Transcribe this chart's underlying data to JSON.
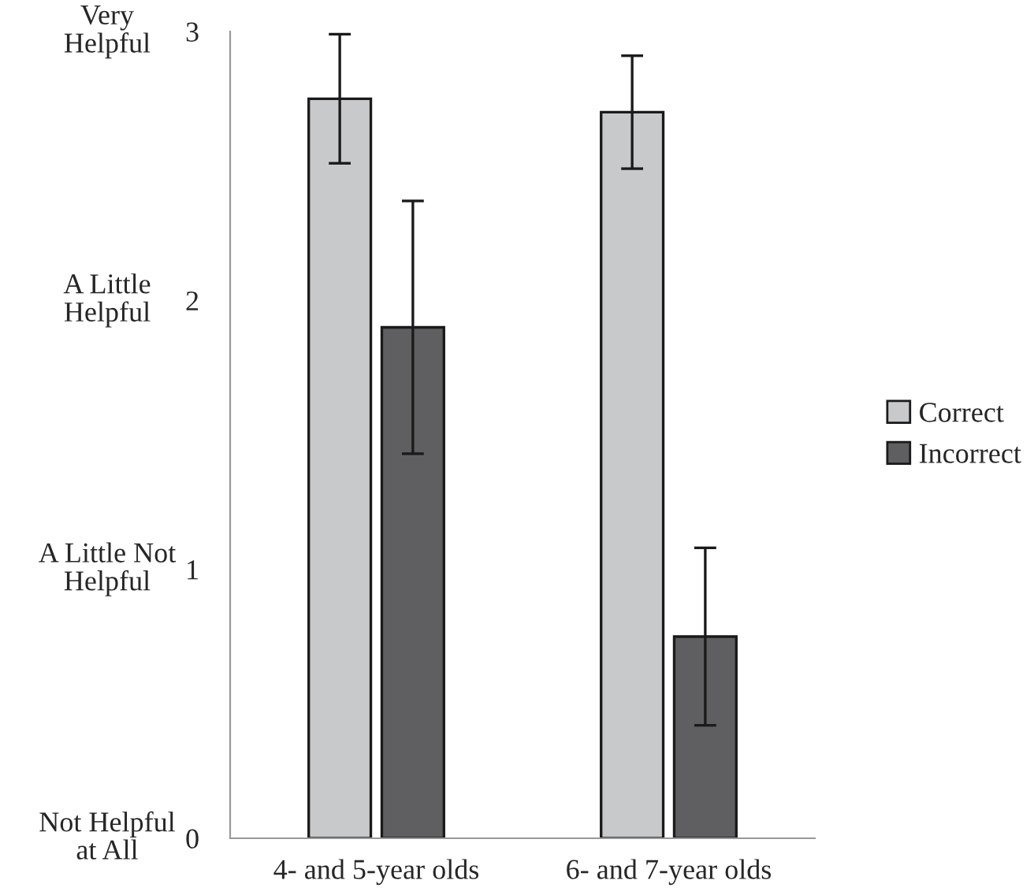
{
  "chart_data": {
    "type": "bar",
    "categories": [
      "4- and 5-year olds",
      "6- and 7-year olds"
    ],
    "series": [
      {
        "name": "Correct",
        "color": "#c8c9cb",
        "values": [
          2.75,
          2.7
        ],
        "errors": [
          0.24,
          0.21
        ]
      },
      {
        "name": "Incorrect",
        "color": "#5f5f61",
        "values": [
          1.9,
          0.75
        ],
        "errors": [
          0.47,
          0.33
        ]
      }
    ],
    "ylim": [
      0,
      3
    ],
    "yticks": [
      0,
      1,
      2,
      3
    ],
    "grid": false,
    "legend": "right",
    "annotations": [
      "Very\nHelpful",
      "A Little\nHelpful",
      "A Little Not\nHelpful",
      "Not Helpful\nat All"
    ]
  }
}
